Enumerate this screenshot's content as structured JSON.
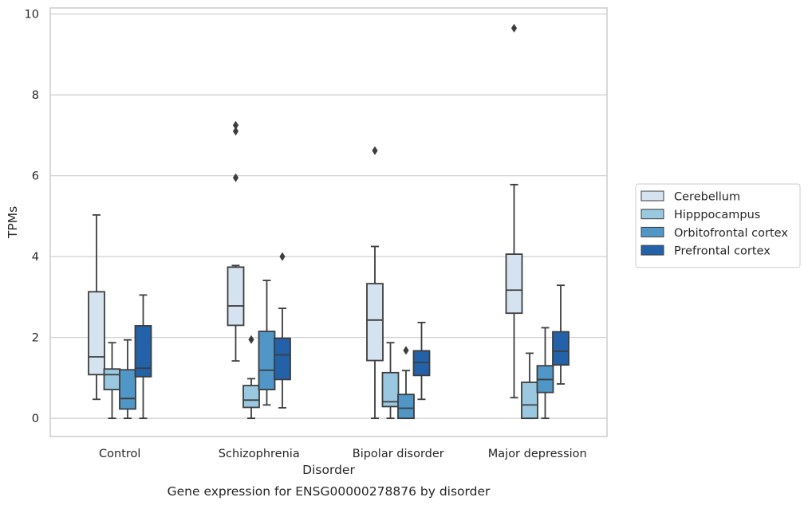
{
  "chart_data": {
    "type": "box",
    "caption": "Gene expression for ENSG00000278876 by disorder",
    "xlabel": "Disorder",
    "ylabel": "TPMs",
    "ylim": [
      -0.45,
      10.15
    ],
    "yticks": [
      0,
      2,
      4,
      6,
      8,
      10
    ],
    "grid": true,
    "legend_position": "right",
    "categories": [
      "Control",
      "Schizophrenia",
      "Bipolar disorder",
      "Major depression"
    ],
    "series": [
      {
        "name": "Cerebellum",
        "color": "#d5e3f1",
        "boxes": [
          {
            "whislo": 0.47,
            "q1": 1.08,
            "med": 1.52,
            "q3": 3.13,
            "whishi": 5.03,
            "fliers": []
          },
          {
            "whislo": 1.42,
            "q1": 2.3,
            "med": 2.78,
            "q3": 3.74,
            "whishi": 3.78,
            "fliers": [
              5.95,
              7.1,
              7.25
            ]
          },
          {
            "whislo": 0.0,
            "q1": 1.43,
            "med": 2.43,
            "q3": 3.33,
            "whishi": 4.25,
            "fliers": [
              6.62
            ]
          },
          {
            "whislo": 0.51,
            "q1": 2.6,
            "med": 3.17,
            "q3": 4.06,
            "whishi": 5.78,
            "fliers": [
              9.65
            ]
          }
        ]
      },
      {
        "name": "Hipppocampus",
        "color": "#9ac8e0",
        "boxes": [
          {
            "whislo": 0.0,
            "q1": 0.71,
            "med": 1.08,
            "q3": 1.22,
            "whishi": 1.87,
            "fliers": []
          },
          {
            "whislo": 0.0,
            "q1": 0.27,
            "med": 0.45,
            "q3": 0.81,
            "whishi": 0.98,
            "fliers": [
              1.95
            ]
          },
          {
            "whislo": 0.0,
            "q1": 0.29,
            "med": 0.41,
            "q3": 1.13,
            "whishi": 1.87,
            "fliers": []
          },
          {
            "whislo": 0.0,
            "q1": 0.0,
            "med": 0.33,
            "q3": 0.89,
            "whishi": 1.61,
            "fliers": []
          }
        ]
      },
      {
        "name": "Orbitofrontal cortex",
        "color": "#5097c8",
        "boxes": [
          {
            "whislo": 0.0,
            "q1": 0.23,
            "med": 0.49,
            "q3": 1.2,
            "whishi": 1.94,
            "fliers": []
          },
          {
            "whislo": 0.33,
            "q1": 0.71,
            "med": 1.19,
            "q3": 2.15,
            "whishi": 3.41,
            "fliers": []
          },
          {
            "whislo": 0.0,
            "q1": 0.0,
            "med": 0.25,
            "q3": 0.59,
            "whishi": 1.18,
            "fliers": [
              1.68
            ]
          },
          {
            "whislo": 0.0,
            "q1": 0.64,
            "med": 0.96,
            "q3": 1.3,
            "whishi": 2.24,
            "fliers": []
          }
        ]
      },
      {
        "name": "Prefrontal cortex",
        "color": "#2362a8",
        "boxes": [
          {
            "whislo": 0.0,
            "q1": 1.03,
            "med": 1.24,
            "q3": 2.29,
            "whishi": 3.05,
            "fliers": []
          },
          {
            "whislo": 0.26,
            "q1": 0.96,
            "med": 1.57,
            "q3": 1.98,
            "whishi": 2.72,
            "fliers": [
              4.0
            ]
          },
          {
            "whislo": 0.47,
            "q1": 1.06,
            "med": 1.38,
            "q3": 1.67,
            "whishi": 2.37,
            "fliers": []
          },
          {
            "whislo": 0.85,
            "q1": 1.32,
            "med": 1.66,
            "q3": 2.14,
            "whishi": 3.29,
            "fliers": []
          }
        ]
      }
    ]
  }
}
